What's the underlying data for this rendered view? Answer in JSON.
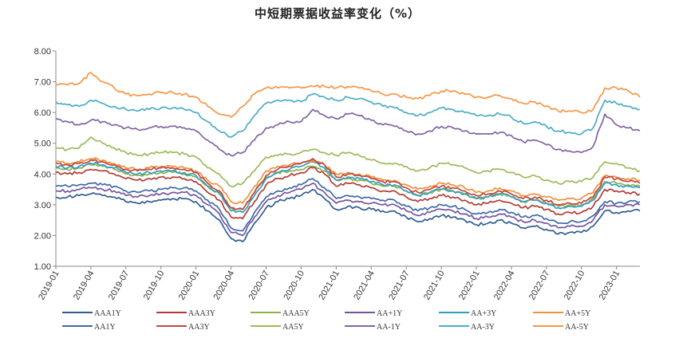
{
  "chart_data": {
    "type": "line",
    "title": "中短期票据收益率变化（%）",
    "xlabel": "",
    "ylabel": "",
    "ylim": [
      1.0,
      8.0
    ],
    "yticks": [
      "1.00",
      "2.00",
      "3.00",
      "4.00",
      "5.00",
      "6.00",
      "7.00",
      "8.00"
    ],
    "xticks": [
      "2019-01",
      "2019-04",
      "2019-07",
      "2019-10",
      "2020-01",
      "2020-04",
      "2020-07",
      "2020-10",
      "2021-01",
      "2021-04",
      "2021-07",
      "2021-10",
      "2022-01",
      "2022-04",
      "2022-07",
      "2022-10",
      "2023-01"
    ],
    "x": [
      "2019-01",
      "2019-02",
      "2019-03",
      "2019-04",
      "2019-05",
      "2019-06",
      "2019-07",
      "2019-08",
      "2019-09",
      "2019-10",
      "2019-11",
      "2019-12",
      "2020-01",
      "2020-02",
      "2020-03",
      "2020-04",
      "2020-05",
      "2020-06",
      "2020-07",
      "2020-08",
      "2020-09",
      "2020-10",
      "2020-11",
      "2020-12",
      "2021-01",
      "2021-02",
      "2021-03",
      "2021-04",
      "2021-05",
      "2021-06",
      "2021-07",
      "2021-08",
      "2021-09",
      "2021-10",
      "2021-11",
      "2021-12",
      "2022-01",
      "2022-02",
      "2022-03",
      "2022-04",
      "2022-05",
      "2022-06",
      "2022-07",
      "2022-08",
      "2022-09",
      "2022-10",
      "2022-11",
      "2022-12",
      "2023-01",
      "2023-02",
      "2023-03"
    ],
    "grid": false,
    "legend_position": "bottom",
    "series": [
      {
        "name": "AAA1Y",
        "color": "#2f5d91",
        "values": [
          3.25,
          3.25,
          3.3,
          3.35,
          3.3,
          3.25,
          3.1,
          3.05,
          3.1,
          3.15,
          3.2,
          3.2,
          3.1,
          2.8,
          2.5,
          1.9,
          1.8,
          2.4,
          2.9,
          3.1,
          3.2,
          3.3,
          3.5,
          3.2,
          2.85,
          2.95,
          2.9,
          2.85,
          2.8,
          2.8,
          2.6,
          2.45,
          2.55,
          2.65,
          2.6,
          2.5,
          2.35,
          2.4,
          2.5,
          2.4,
          2.25,
          2.3,
          2.2,
          2.05,
          2.1,
          2.1,
          2.3,
          2.8,
          2.75,
          2.8,
          2.8
        ]
      },
      {
        "name": "AAA3Y",
        "color": "#b23c35",
        "values": [
          4.05,
          4.0,
          4.05,
          4.15,
          4.1,
          4.0,
          3.85,
          3.8,
          3.85,
          3.9,
          3.9,
          3.85,
          3.75,
          3.4,
          3.15,
          2.6,
          2.55,
          3.1,
          3.65,
          3.85,
          3.95,
          4.05,
          4.2,
          4.0,
          3.6,
          3.7,
          3.65,
          3.55,
          3.45,
          3.45,
          3.25,
          3.1,
          3.2,
          3.3,
          3.25,
          3.15,
          3.0,
          3.05,
          3.15,
          3.05,
          2.9,
          2.95,
          2.85,
          2.7,
          2.75,
          2.75,
          2.95,
          3.5,
          3.45,
          3.4,
          3.35
        ]
      },
      {
        "name": "AAA5Y",
        "color": "#8eb04a",
        "values": [
          4.2,
          4.15,
          4.2,
          4.3,
          4.25,
          4.15,
          4.0,
          3.95,
          4.0,
          4.05,
          4.05,
          4.0,
          3.9,
          3.6,
          3.4,
          2.9,
          2.85,
          3.4,
          3.9,
          4.05,
          4.1,
          4.15,
          4.25,
          4.1,
          3.8,
          3.85,
          3.8,
          3.7,
          3.6,
          3.6,
          3.45,
          3.3,
          3.4,
          3.5,
          3.45,
          3.35,
          3.2,
          3.25,
          3.35,
          3.25,
          3.1,
          3.15,
          3.05,
          2.95,
          3.0,
          3.0,
          3.2,
          3.75,
          3.7,
          3.65,
          3.6
        ]
      },
      {
        "name": "AA+1Y",
        "color": "#7555a0",
        "values": [
          3.45,
          3.45,
          3.5,
          3.55,
          3.5,
          3.45,
          3.3,
          3.25,
          3.3,
          3.35,
          3.4,
          3.4,
          3.3,
          3.0,
          2.7,
          2.1,
          2.0,
          2.6,
          3.1,
          3.3,
          3.4,
          3.5,
          3.7,
          3.4,
          3.05,
          3.15,
          3.1,
          3.05,
          3.0,
          3.0,
          2.8,
          2.65,
          2.75,
          2.85,
          2.8,
          2.7,
          2.55,
          2.6,
          2.7,
          2.6,
          2.45,
          2.5,
          2.4,
          2.25,
          2.3,
          2.3,
          2.5,
          3.0,
          2.95,
          3.0,
          3.0
        ]
      },
      {
        "name": "AA+3Y",
        "color": "#2e9fc0",
        "values": [
          4.25,
          4.2,
          4.25,
          4.35,
          4.3,
          4.2,
          4.05,
          4.0,
          4.05,
          4.1,
          4.1,
          4.05,
          3.95,
          3.6,
          3.35,
          2.8,
          2.75,
          3.3,
          3.85,
          4.05,
          4.15,
          4.25,
          4.4,
          4.2,
          3.8,
          3.9,
          3.85,
          3.75,
          3.65,
          3.65,
          3.45,
          3.3,
          3.4,
          3.5,
          3.45,
          3.35,
          3.2,
          3.25,
          3.35,
          3.25,
          3.1,
          3.15,
          3.05,
          2.9,
          2.95,
          2.95,
          3.15,
          3.7,
          3.65,
          3.6,
          3.55
        ]
      },
      {
        "name": "AA+5Y",
        "color": "#f0903a",
        "values": [
          4.4,
          4.35,
          4.4,
          4.5,
          4.45,
          4.35,
          4.2,
          4.15,
          4.2,
          4.25,
          4.25,
          4.2,
          4.1,
          3.8,
          3.6,
          3.1,
          3.05,
          3.6,
          4.1,
          4.25,
          4.3,
          4.35,
          4.45,
          4.3,
          4.0,
          4.05,
          4.0,
          3.9,
          3.8,
          3.8,
          3.65,
          3.5,
          3.6,
          3.7,
          3.65,
          3.55,
          3.4,
          3.45,
          3.55,
          3.45,
          3.3,
          3.35,
          3.25,
          3.15,
          3.2,
          3.2,
          3.4,
          3.95,
          3.9,
          3.85,
          3.8
        ]
      },
      {
        "name": "AA1Y",
        "color": "#3f6aa6",
        "values": [
          3.6,
          3.6,
          3.65,
          3.7,
          3.65,
          3.6,
          3.45,
          3.4,
          3.45,
          3.5,
          3.55,
          3.55,
          3.45,
          3.15,
          2.85,
          2.25,
          2.15,
          2.75,
          3.25,
          3.45,
          3.55,
          3.65,
          3.85,
          3.55,
          3.2,
          3.3,
          3.25,
          3.2,
          3.15,
          3.15,
          2.95,
          2.8,
          2.9,
          3.0,
          2.95,
          2.85,
          2.7,
          2.75,
          2.85,
          2.75,
          2.6,
          2.65,
          2.55,
          2.4,
          2.45,
          2.45,
          2.65,
          3.1,
          3.05,
          3.1,
          3.1
        ]
      },
      {
        "name": "AA3Y",
        "color": "#c2453d",
        "values": [
          4.35,
          4.3,
          4.35,
          4.45,
          4.4,
          4.3,
          4.15,
          4.1,
          4.15,
          4.2,
          4.2,
          4.15,
          4.05,
          3.7,
          3.45,
          2.9,
          2.85,
          3.4,
          3.95,
          4.15,
          4.25,
          4.35,
          4.5,
          4.3,
          3.9,
          4.0,
          3.95,
          3.85,
          3.75,
          3.75,
          3.55,
          3.4,
          3.5,
          3.6,
          3.55,
          3.45,
          3.3,
          3.35,
          3.45,
          3.35,
          3.2,
          3.25,
          3.15,
          3.0,
          3.05,
          3.05,
          3.25,
          3.9,
          3.85,
          3.75,
          3.7
        ]
      },
      {
        "name": "AA5Y",
        "color": "#9bbb59",
        "values": [
          4.85,
          4.8,
          4.85,
          5.2,
          5.0,
          4.85,
          4.7,
          4.6,
          4.65,
          4.7,
          4.7,
          4.65,
          4.55,
          4.2,
          4.0,
          3.6,
          3.7,
          4.1,
          4.55,
          4.6,
          4.65,
          4.7,
          4.8,
          4.7,
          4.6,
          4.7,
          4.6,
          4.45,
          4.35,
          4.35,
          4.25,
          4.1,
          4.2,
          4.35,
          4.3,
          4.2,
          4.05,
          4.1,
          4.15,
          4.05,
          3.9,
          3.95,
          3.8,
          3.7,
          3.75,
          3.75,
          3.9,
          4.4,
          4.35,
          4.2,
          4.1
        ]
      },
      {
        "name": "AA-1Y",
        "color": "#8064a2",
        "values": [
          5.8,
          5.7,
          5.6,
          5.75,
          5.7,
          5.6,
          5.5,
          5.45,
          5.5,
          5.55,
          5.55,
          5.5,
          5.4,
          5.1,
          4.8,
          4.6,
          4.7,
          5.1,
          5.5,
          5.6,
          5.7,
          5.7,
          6.1,
          5.9,
          5.8,
          5.95,
          5.9,
          5.75,
          5.6,
          5.55,
          5.4,
          5.3,
          5.4,
          5.55,
          5.5,
          5.4,
          5.3,
          5.3,
          5.35,
          5.25,
          5.05,
          5.1,
          4.95,
          4.8,
          4.75,
          4.7,
          4.9,
          5.95,
          5.6,
          5.5,
          5.4
        ]
      },
      {
        "name": "AA-3Y",
        "color": "#4bacc6",
        "values": [
          6.35,
          6.25,
          6.2,
          6.4,
          6.3,
          6.2,
          6.1,
          6.05,
          6.1,
          6.15,
          6.15,
          6.1,
          6.0,
          5.7,
          5.4,
          5.2,
          5.4,
          5.9,
          6.3,
          6.4,
          6.4,
          6.35,
          6.6,
          6.5,
          6.4,
          6.5,
          6.45,
          6.35,
          6.2,
          6.15,
          6.0,
          5.9,
          6.0,
          6.15,
          6.1,
          6.0,
          5.9,
          5.9,
          5.95,
          5.85,
          5.65,
          5.7,
          5.55,
          5.4,
          5.35,
          5.3,
          5.5,
          6.4,
          6.3,
          6.2,
          6.1
        ]
      },
      {
        "name": "AA-5Y",
        "color": "#f79646",
        "values": [
          6.9,
          6.9,
          6.95,
          7.3,
          7.0,
          6.8,
          6.6,
          6.55,
          6.6,
          6.65,
          6.65,
          6.6,
          6.5,
          6.2,
          5.95,
          5.85,
          6.2,
          6.6,
          6.8,
          6.8,
          6.8,
          6.8,
          6.85,
          6.85,
          6.8,
          6.85,
          6.8,
          6.7,
          6.6,
          6.6,
          6.5,
          6.45,
          6.55,
          6.7,
          6.7,
          6.6,
          6.5,
          6.5,
          6.55,
          6.45,
          6.3,
          6.35,
          6.2,
          6.05,
          6.05,
          6.0,
          6.1,
          6.8,
          6.8,
          6.7,
          6.5
        ]
      }
    ]
  }
}
